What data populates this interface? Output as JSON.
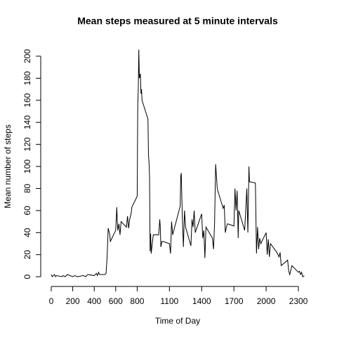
{
  "chart_data": {
    "type": "line",
    "title": "Mean steps measured at 5 minute intervals",
    "x_label": "Time of Day",
    "y_label": "Mean number of steps",
    "color": "#000000",
    "xlim": [
      -94,
      2449
    ],
    "ylim": [
      -8.2,
      214.4
    ],
    "xticks": [
      0,
      200,
      400,
      600,
      800,
      1100,
      1400,
      1700,
      2000,
      2300
    ],
    "yticks": [
      0,
      20,
      40,
      60,
      80,
      100,
      120,
      140,
      160,
      180,
      200
    ],
    "x": [
      0,
      10,
      20,
      30,
      40,
      50,
      100,
      110,
      130,
      150,
      200,
      220,
      240,
      300,
      320,
      340,
      400,
      420,
      430,
      440,
      450,
      500,
      510,
      520,
      530,
      545,
      550,
      600,
      610,
      615,
      620,
      630,
      640,
      650,
      700,
      710,
      720,
      730,
      740,
      745,
      750,
      800,
      805,
      810,
      815,
      820,
      830,
      835,
      840,
      845,
      900,
      905,
      910,
      915,
      920,
      925,
      930,
      940,
      950,
      1000,
      1010,
      1015,
      1020,
      1030,
      1040,
      1100,
      1110,
      1120,
      1130,
      1200,
      1205,
      1210,
      1220,
      1230,
      1240,
      1250,
      1300,
      1310,
      1320,
      1330,
      1340,
      1400,
      1410,
      1420,
      1430,
      1440,
      1500,
      1510,
      1520,
      1530,
      1545,
      1550,
      1600,
      1610,
      1620,
      1630,
      1640,
      1700,
      1710,
      1720,
      1730,
      1740,
      1745,
      1800,
      1810,
      1820,
      1830,
      1840,
      1845,
      1850,
      1900,
      1910,
      1920,
      1930,
      1940,
      1950,
      2000,
      2010,
      2020,
      2030,
      2040,
      2100,
      2110,
      2120,
      2130,
      2140,
      2200,
      2210,
      2220,
      2230,
      2240,
      2300,
      2310,
      2320,
      2330,
      2340,
      2355
    ],
    "values": [
      2,
      0,
      1,
      2,
      0,
      1,
      0,
      1,
      0,
      2,
      0,
      1,
      0,
      1,
      0,
      2,
      1,
      3,
      1,
      4,
      2,
      2,
      3,
      18,
      44,
      38,
      32,
      42,
      63,
      50,
      42,
      48,
      38,
      50,
      45,
      55,
      44,
      52,
      56,
      58,
      63,
      73,
      155,
      170,
      206,
      180,
      184,
      166,
      170,
      160,
      143,
      110,
      104,
      90,
      23,
      39,
      21,
      30,
      38,
      38,
      52,
      45,
      27,
      32,
      32,
      30,
      21,
      50,
      38,
      64,
      91,
      94,
      54,
      27,
      60,
      45,
      28,
      52,
      45,
      60,
      40,
      57,
      35,
      42,
      17,
      45,
      35,
      25,
      48,
      102,
      80,
      78,
      62,
      65,
      40,
      45,
      48,
      46,
      80,
      60,
      78,
      35,
      60,
      42,
      60,
      80,
      40,
      100,
      86,
      86,
      85,
      21,
      45,
      25,
      35,
      30,
      40,
      20,
      34,
      18,
      30,
      22,
      20,
      18,
      22,
      10,
      15,
      5,
      2,
      6,
      10,
      4,
      5,
      2,
      4,
      0,
      1
    ]
  }
}
